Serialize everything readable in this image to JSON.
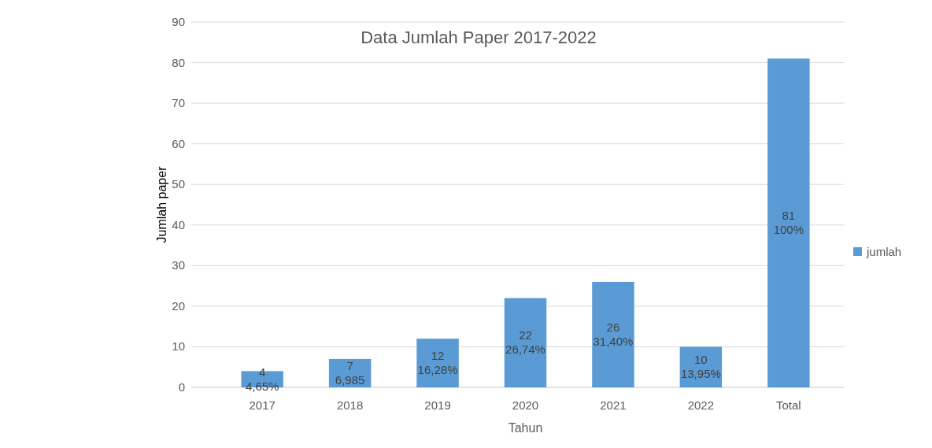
{
  "chart_data": {
    "type": "bar",
    "title": "Data Jumlah Paper 2017-2022",
    "xlabel": "Tahun",
    "ylabel": "Jumlah paper",
    "categories": [
      "2017",
      "2018",
      "2019",
      "2020",
      "2021",
      "2022",
      "Total"
    ],
    "series": [
      {
        "name": "jumlah",
        "color": "#5b9bd5",
        "values": [
          4,
          7,
          12,
          22,
          26,
          10,
          81
        ]
      }
    ],
    "data_labels": true,
    "annotations": [
      "4,65%",
      "6,985",
      "16,28%",
      "26,74%",
      "31,40%",
      "13,95%",
      "100%"
    ],
    "ylim": [
      0,
      90
    ],
    "yticks": [
      0,
      10,
      20,
      30,
      40,
      50,
      60,
      70,
      80,
      90
    ],
    "grid": "y",
    "legend": "right"
  }
}
